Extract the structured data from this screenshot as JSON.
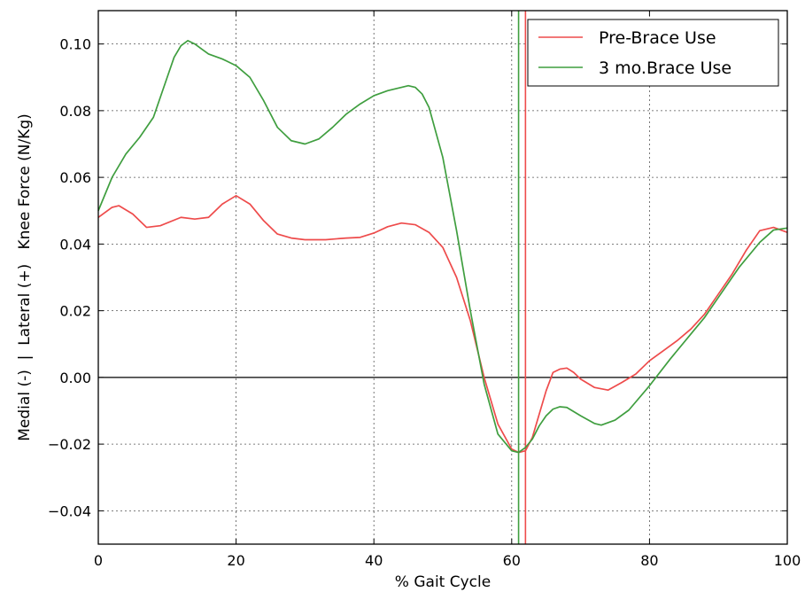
{
  "chart_data": {
    "type": "line",
    "title": "",
    "xlabel": "% Gait Cycle",
    "ylabel": "Medial (-)  |  Lateral (+)   Knee Force (N/Kg)",
    "xlim": [
      0,
      100
    ],
    "ylim": [
      -0.05,
      0.11
    ],
    "xticks": [
      0,
      20,
      40,
      60,
      80,
      100
    ],
    "yticks": [
      -0.04,
      -0.02,
      0.0,
      0.02,
      0.04,
      0.06,
      0.08,
      0.1
    ],
    "xtick_labels": [
      "0",
      "20",
      "40",
      "60",
      "80",
      "100"
    ],
    "ytick_labels": [
      "−0.04",
      "−0.02",
      "0.00",
      "0.02",
      "0.04",
      "0.06",
      "0.08",
      "0.10"
    ],
    "grid": true,
    "legend_position": "top-right",
    "zero_line": 0.0,
    "series": [
      {
        "name": "Pre-Brace Use",
        "color": "#ee4b4b",
        "vline": 62.0,
        "x": [
          0,
          2,
          3,
          5,
          7,
          9,
          12,
          14,
          16,
          18,
          20,
          22,
          24,
          26,
          28,
          30,
          33,
          36,
          38,
          40,
          42,
          44,
          46,
          48,
          50,
          52,
          54,
          56,
          58,
          60,
          61,
          62,
          63,
          64,
          65,
          66,
          67,
          68,
          69,
          70,
          72,
          74,
          76,
          78,
          80,
          82,
          84,
          86,
          88,
          90,
          92,
          94,
          96,
          98,
          100
        ],
        "y": [
          0.048,
          0.051,
          0.0515,
          0.049,
          0.045,
          0.0455,
          0.048,
          0.0475,
          0.048,
          0.052,
          0.0545,
          0.052,
          0.047,
          0.043,
          0.0418,
          0.0413,
          0.0413,
          0.0418,
          0.042,
          0.0433,
          0.0452,
          0.0463,
          0.0458,
          0.0435,
          0.039,
          0.03,
          0.017,
          0.0,
          -0.014,
          -0.0215,
          -0.0225,
          -0.022,
          -0.018,
          -0.011,
          -0.004,
          0.0015,
          0.0025,
          0.0028,
          0.0015,
          -0.0005,
          -0.003,
          -0.0038,
          -0.0015,
          0.001,
          0.005,
          0.008,
          0.011,
          0.0145,
          0.019,
          0.025,
          0.031,
          0.038,
          0.044,
          0.045,
          0.0435
        ]
      },
      {
        "name": "3 mo.Brace Use",
        "color": "#3f9e3f",
        "vline": 61.0,
        "x": [
          0,
          2,
          4,
          6,
          8,
          10,
          11,
          12,
          13,
          14,
          15,
          16,
          18,
          20,
          22,
          24,
          26,
          28,
          30,
          32,
          34,
          36,
          38,
          40,
          42,
          44,
          45,
          46,
          47,
          48,
          50,
          52,
          54,
          56,
          58,
          60,
          61,
          62,
          63,
          64,
          65,
          66,
          67,
          68,
          70,
          72,
          73,
          75,
          77,
          80,
          83,
          86,
          88,
          90,
          93,
          96,
          98,
          100
        ],
        "y": [
          0.05,
          0.06,
          0.067,
          0.072,
          0.078,
          0.09,
          0.096,
          0.0995,
          0.101,
          0.1,
          0.0985,
          0.097,
          0.0955,
          0.0935,
          0.09,
          0.083,
          0.075,
          0.071,
          0.07,
          0.0715,
          0.075,
          0.079,
          0.082,
          0.0845,
          0.086,
          0.087,
          0.0875,
          0.087,
          0.085,
          0.081,
          0.066,
          0.044,
          0.02,
          -0.002,
          -0.017,
          -0.022,
          -0.0225,
          -0.021,
          -0.0185,
          -0.0145,
          -0.0115,
          -0.0095,
          -0.0088,
          -0.009,
          -0.0115,
          -0.0138,
          -0.0143,
          -0.0128,
          -0.0098,
          -0.0025,
          0.0055,
          0.013,
          0.018,
          0.024,
          0.033,
          0.0405,
          0.0442,
          0.0448
        ]
      }
    ]
  }
}
